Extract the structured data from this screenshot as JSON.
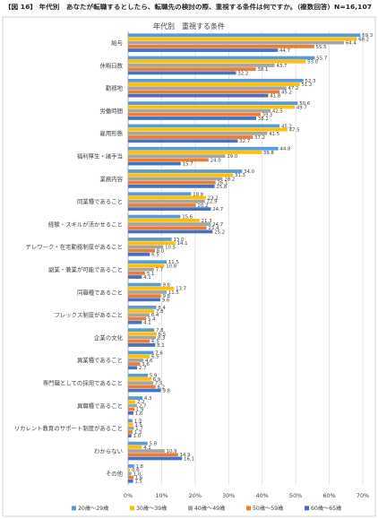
{
  "header": {
    "title": "【図 16】 年代別　あなたが転職するとしたら、転職先の検討の際、重視する条件は何ですか。（複数回答）N=16,107"
  },
  "chart_data": {
    "type": "bar",
    "orientation": "horizontal",
    "title": "年代別　重視する条件",
    "xlabel": "",
    "ylabel": "",
    "xlim": [
      0,
      70
    ],
    "x_tick_labels": [
      "0%",
      "10%",
      "20%",
      "30%",
      "40%",
      "50%",
      "60%",
      "70%"
    ],
    "grid": "vertical",
    "legend": "bottom",
    "categories": [
      "給与",
      "休暇日数",
      "勤務地",
      "労働時間",
      "雇用形態",
      "福利厚生・諸手当",
      "業務内容",
      "同業種であること",
      "経験・スキルが活かせること",
      "テレワーク・在宅勤務制度があること",
      "副業・兼業が可能であること",
      "同職種であること",
      "フレックス制度があること",
      "企業の文化",
      "異業種であること",
      "専門職としての採用であること",
      "異職種であること",
      "リカレント教育のサポート制度があること",
      "わからない",
      "その他"
    ],
    "series": [
      {
        "name": "20歳～29歳",
        "color": "#5B9BD5",
        "values": [
          69.3,
          55.7,
          52.3,
          50.6,
          45.2,
          44.8,
          34.0,
          18.8,
          15.6,
          13.0,
          11.5,
          9.8,
          8.4,
          7.8,
          7.6,
          5.9,
          4.3,
          1.3,
          5.8,
          1.8
        ]
      },
      {
        "name": "30歳～39歳",
        "color": "#FFC000",
        "values": [
          68.2,
          53.0,
          51.2,
          49.7,
          47.5,
          39.8,
          31.3,
          23.2,
          21.3,
          14.1,
          10.8,
          13.7,
          7.8,
          8.5,
          6.5,
          6.9,
          2.2,
          1.5,
          4.1,
          0.6
        ]
      },
      {
        "name": "40歳～49歳",
        "color": "#A5A5A5",
        "values": [
          64.4,
          43.7,
          47.2,
          42.5,
          41.5,
          29.0,
          28.2,
          22.9,
          24.7,
          10.5,
          7.7,
          11.5,
          6.4,
          8.3,
          4.6,
          7.5,
          2.7,
          1.7,
          10.9,
          1.0
        ]
      },
      {
        "name": "50歳～59歳",
        "color": "#ED7D31",
        "values": [
          55.5,
          38.1,
          45.2,
          39.5,
          37.2,
          24.0,
          26.1,
          20.2,
          23.4,
          8.0,
          5.1,
          9.8,
          5.4,
          6.5,
          3.6,
          8.2,
          1.9,
          1.3,
          14.9,
          1.6
        ]
      },
      {
        "name": "60歳～65歳",
        "color": "#4472C4",
        "values": [
          44.7,
          32.2,
          41.8,
          38.2,
          32.7,
          15.7,
          25.8,
          24.7,
          25.2,
          6.5,
          4.1,
          9.6,
          4.1,
          8.1,
          2.7,
          9.8,
          1.6,
          1.0,
          16.1,
          1.5
        ]
      }
    ]
  }
}
